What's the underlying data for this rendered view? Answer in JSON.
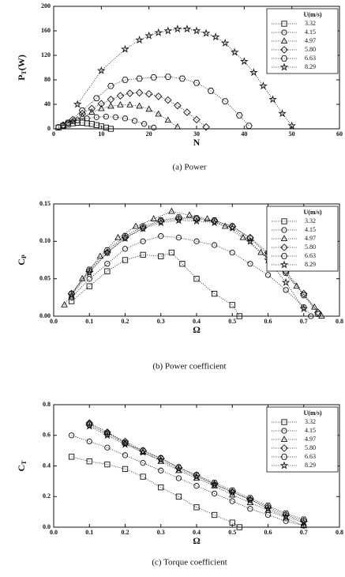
{
  "chart_data": [
    {
      "type": "line",
      "caption": "(a) Power",
      "xlabel": "N",
      "ylabel": "P",
      "ylabel_subscript": "T",
      "ylabel_unit": "(W)",
      "legend_title": "U(m/s)",
      "xlim": [
        0,
        60
      ],
      "ylim": [
        0,
        200
      ],
      "xticks": [
        0,
        10,
        20,
        30,
        40,
        50,
        60
      ],
      "yticks": [
        0,
        40,
        80,
        120,
        160,
        200
      ],
      "series": [
        {
          "name": "3.32",
          "marker": "square",
          "color": "#111111",
          "x": [
            1,
            2,
            3,
            4,
            5,
            6,
            7,
            8,
            9,
            10,
            11,
            12
          ],
          "values": [
            2,
            5,
            7,
            9,
            10,
            10,
            9,
            8,
            6,
            4,
            2,
            0
          ]
        },
        {
          "name": "4.15",
          "marker": "circle",
          "color": "#111111",
          "x": [
            1,
            3,
            5,
            7,
            9,
            11,
            13,
            15,
            17,
            19,
            21
          ],
          "values": [
            3,
            9,
            14,
            17,
            19,
            20,
            19,
            17,
            13,
            8,
            2
          ]
        },
        {
          "name": "4.97",
          "marker": "triangle",
          "color": "#111111",
          "x": [
            2,
            4,
            6,
            8,
            10,
            12,
            14,
            16,
            18,
            20,
            22,
            24,
            26
          ],
          "values": [
            5,
            12,
            20,
            27,
            33,
            37,
            39,
            39,
            37,
            32,
            24,
            14,
            3
          ]
        },
        {
          "name": "5.80",
          "marker": "diamond",
          "color": "#111111",
          "x": [
            2,
            4,
            6,
            8,
            10,
            12,
            14,
            16,
            18,
            20,
            22,
            24,
            26,
            28,
            30,
            32
          ],
          "values": [
            6,
            15,
            25,
            33,
            41,
            48,
            54,
            58,
            59,
            57,
            53,
            47,
            38,
            27,
            15,
            3
          ]
        },
        {
          "name": "6.63",
          "marker": "hexagon",
          "color": "#111111",
          "x": [
            3,
            6,
            9,
            12,
            15,
            18,
            21,
            24,
            27,
            30,
            33,
            36,
            39,
            41
          ],
          "values": [
            10,
            30,
            50,
            70,
            80,
            82,
            84,
            85,
            82,
            75,
            62,
            45,
            22,
            5
          ]
        },
        {
          "name": "8.29",
          "marker": "star",
          "color": "#111111",
          "x": [
            5,
            10,
            15,
            18,
            20,
            22,
            24,
            26,
            28,
            30,
            32,
            34,
            36,
            38,
            40,
            42,
            44,
            46,
            48,
            50
          ],
          "values": [
            40,
            95,
            130,
            145,
            152,
            157,
            160,
            163,
            163,
            160,
            156,
            150,
            140,
            125,
            110,
            92,
            70,
            48,
            25,
            5
          ]
        }
      ]
    },
    {
      "type": "line",
      "caption": "(b) Power coefficient",
      "xlabel": "Ω",
      "ylabel": "C",
      "ylabel_subscript": "P",
      "legend_title": "U(m/s)",
      "xlim": [
        0,
        0.8
      ],
      "ylim": [
        0,
        0.15
      ],
      "xticks": [
        {
          "value": 0,
          "label": "0.0"
        },
        0.1,
        0.2,
        0.3,
        0.4,
        0.5,
        0.6,
        0.7,
        0.8
      ],
      "yticks": [
        {
          "value": 0,
          "label": "0.00"
        },
        0.05,
        {
          "value": 0.1,
          "label": "0.10"
        },
        0.15
      ],
      "series": [
        {
          "name": "3.32",
          "marker": "square",
          "color": "#111111",
          "x": [
            0.05,
            0.1,
            0.15,
            0.2,
            0.25,
            0.3,
            0.33,
            0.36,
            0.4,
            0.45,
            0.5,
            0.52
          ],
          "values": [
            0.02,
            0.04,
            0.06,
            0.075,
            0.082,
            0.08,
            0.085,
            0.07,
            0.05,
            0.03,
            0.015,
            0
          ]
        },
        {
          "name": "4.15",
          "marker": "circle",
          "color": "#111111",
          "x": [
            0.05,
            0.1,
            0.15,
            0.2,
            0.25,
            0.3,
            0.35,
            0.4,
            0.45,
            0.5,
            0.55,
            0.6,
            0.65,
            0.7,
            0.72
          ],
          "values": [
            0.025,
            0.05,
            0.07,
            0.09,
            0.1,
            0.107,
            0.105,
            0.1,
            0.095,
            0.085,
            0.07,
            0.055,
            0.035,
            0.012,
            0
          ]
        },
        {
          "name": "4.97",
          "marker": "triangle",
          "color": "#111111",
          "x": [
            0.03,
            0.08,
            0.13,
            0.18,
            0.23,
            0.28,
            0.33,
            0.38,
            0.43,
            0.48,
            0.53,
            0.58,
            0.63,
            0.68,
            0.73,
            0.75
          ],
          "values": [
            0.015,
            0.05,
            0.08,
            0.105,
            0.12,
            0.13,
            0.14,
            0.135,
            0.13,
            0.12,
            0.105,
            0.085,
            0.065,
            0.04,
            0.012,
            0
          ]
        },
        {
          "name": "5.80",
          "marker": "diamond",
          "color": "#111111",
          "x": [
            0.05,
            0.1,
            0.15,
            0.2,
            0.25,
            0.3,
            0.35,
            0.4,
            0.45,
            0.5,
            0.55,
            0.6,
            0.65,
            0.7,
            0.74
          ],
          "values": [
            0.03,
            0.06,
            0.085,
            0.105,
            0.118,
            0.127,
            0.13,
            0.13,
            0.127,
            0.12,
            0.105,
            0.085,
            0.06,
            0.03,
            0.005
          ]
        },
        {
          "name": "6.63",
          "marker": "hexagon",
          "color": "#111111",
          "x": [
            0.05,
            0.1,
            0.15,
            0.2,
            0.25,
            0.3,
            0.35,
            0.4,
            0.45,
            0.5,
            0.55,
            0.6,
            0.65,
            0.7,
            0.74
          ],
          "values": [
            0.03,
            0.062,
            0.088,
            0.107,
            0.12,
            0.128,
            0.132,
            0.131,
            0.128,
            0.12,
            0.104,
            0.082,
            0.058,
            0.028,
            0.003
          ]
        },
        {
          "name": "8.29",
          "marker": "star",
          "color": "#111111",
          "x": [
            0.05,
            0.1,
            0.15,
            0.2,
            0.25,
            0.3,
            0.35,
            0.4,
            0.45,
            0.5,
            0.55,
            0.6,
            0.65,
            0.7
          ],
          "values": [
            0.028,
            0.058,
            0.085,
            0.104,
            0.117,
            0.125,
            0.128,
            0.127,
            0.125,
            0.118,
            0.1,
            0.075,
            0.045,
            0.01
          ]
        }
      ]
    },
    {
      "type": "line",
      "caption": "(c) Torque coefficient",
      "xlabel": "Ω",
      "ylabel": "C",
      "ylabel_subscript": "T",
      "legend_title": "U(m/s)",
      "xlim": [
        0,
        0.8
      ],
      "ylim": [
        0,
        0.8
      ],
      "xticks": [
        {
          "value": 0,
          "label": "0.0"
        },
        0.1,
        0.2,
        0.3,
        0.4,
        0.5,
        0.6,
        0.7,
        0.8
      ],
      "yticks": [
        {
          "value": 0,
          "label": "0.0"
        },
        0.2,
        0.4,
        0.6,
        0.8
      ],
      "series": [
        {
          "name": "3.32",
          "marker": "square",
          "color": "#111111",
          "x": [
            0.05,
            0.1,
            0.15,
            0.2,
            0.25,
            0.3,
            0.35,
            0.4,
            0.45,
            0.5,
            0.52
          ],
          "values": [
            0.46,
            0.43,
            0.41,
            0.38,
            0.33,
            0.26,
            0.2,
            0.13,
            0.08,
            0.03,
            0
          ]
        },
        {
          "name": "4.15",
          "marker": "circle",
          "color": "#111111",
          "x": [
            0.05,
            0.1,
            0.15,
            0.2,
            0.25,
            0.3,
            0.35,
            0.4,
            0.45,
            0.5,
            0.55,
            0.6,
            0.65,
            0.7
          ],
          "values": [
            0.6,
            0.56,
            0.52,
            0.47,
            0.42,
            0.37,
            0.32,
            0.27,
            0.22,
            0.17,
            0.12,
            0.08,
            0.04,
            0.01
          ]
        },
        {
          "name": "4.97",
          "marker": "triangle",
          "color": "#111111",
          "x": [
            0.1,
            0.15,
            0.2,
            0.25,
            0.3,
            0.35,
            0.4,
            0.45,
            0.5,
            0.55,
            0.6,
            0.65,
            0.7
          ],
          "values": [
            0.68,
            0.62,
            0.55,
            0.49,
            0.43,
            0.37,
            0.32,
            0.27,
            0.21,
            0.16,
            0.11,
            0.06,
            0.01
          ]
        },
        {
          "name": "5.80",
          "marker": "diamond",
          "color": "#111111",
          "x": [
            0.1,
            0.15,
            0.2,
            0.25,
            0.3,
            0.35,
            0.4,
            0.45,
            0.5,
            0.55,
            0.6,
            0.65,
            0.7
          ],
          "values": [
            0.68,
            0.62,
            0.56,
            0.5,
            0.45,
            0.39,
            0.34,
            0.28,
            0.23,
            0.18,
            0.13,
            0.08,
            0.04
          ]
        },
        {
          "name": "6.63",
          "marker": "hexagon",
          "color": "#111111",
          "x": [
            0.1,
            0.15,
            0.2,
            0.25,
            0.3,
            0.35,
            0.4,
            0.45,
            0.5,
            0.55,
            0.6,
            0.65,
            0.7
          ],
          "values": [
            0.67,
            0.61,
            0.55,
            0.5,
            0.45,
            0.39,
            0.34,
            0.29,
            0.24,
            0.19,
            0.14,
            0.09,
            0.05
          ]
        },
        {
          "name": "8.29",
          "marker": "star",
          "color": "#111111",
          "x": [
            0.1,
            0.15,
            0.2,
            0.25,
            0.3,
            0.35,
            0.4,
            0.45,
            0.5,
            0.55,
            0.6,
            0.65,
            0.7
          ],
          "values": [
            0.66,
            0.6,
            0.54,
            0.49,
            0.44,
            0.38,
            0.33,
            0.28,
            0.23,
            0.18,
            0.12,
            0.07,
            0.03
          ]
        }
      ]
    }
  ]
}
